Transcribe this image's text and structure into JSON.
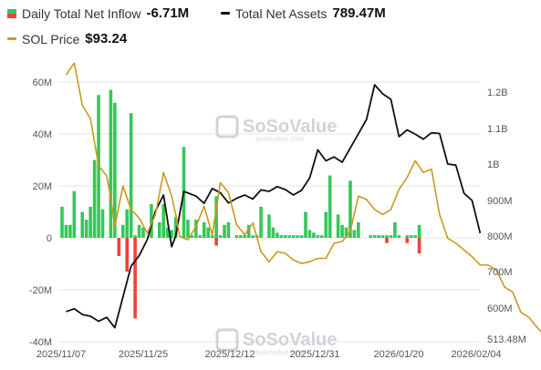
{
  "legend": {
    "inflow": {
      "label": "Daily Total Net Inflow",
      "value": "-6.71M",
      "icon": "green-red-square-icon"
    },
    "assets": {
      "label": "Total Net Assets",
      "value": "789.47M",
      "icon": "black-line-icon"
    },
    "price": {
      "label": "SOL Price",
      "value": "$93.24",
      "icon": "gold-line-icon"
    }
  },
  "watermark": {
    "text": "SoSoValue",
    "subtext": "sosovalue.com"
  },
  "colors": {
    "inflow_positive": "#35c759",
    "inflow_negative": "#f0413a",
    "net_assets": "#111111",
    "sol_price": "#c99a1e",
    "grid": "#e6e6e6"
  },
  "chart_data": {
    "type": "bar+line",
    "x_tick_labels": [
      "2025/11/07",
      "2025/11/25",
      "2025/12/12",
      "2025/12/31",
      "2026/01/20",
      "2026/02/04"
    ],
    "left_axis": {
      "name": "Daily Total Net Inflow",
      "unit": "USD",
      "ticks": [
        "60M",
        "40M",
        "20M",
        "0",
        "-20M",
        "-40M"
      ],
      "range": [
        -40,
        60
      ]
    },
    "right_axis": {
      "name": "Total Net Assets",
      "unit": "USD",
      "ticks": [
        "1.2B",
        "1.1B",
        "1B",
        "900M",
        "800M",
        "700M",
        "600M",
        "513.48M"
      ],
      "range": [
        513.48,
        1250
      ]
    },
    "price_axis_hidden_range": [
      80,
      250
    ],
    "series": [
      {
        "name": "Daily Total Net Inflow",
        "type": "bar",
        "values": [
          12,
          5,
          5,
          18,
          0,
          10,
          7,
          12,
          30,
          55,
          11,
          0,
          57,
          52,
          0,
          5,
          11,
          48,
          1,
          5,
          4,
          0,
          13,
          0,
          6,
          13,
          4,
          3,
          8,
          0,
          35,
          7,
          1,
          7,
          1,
          6,
          4,
          1,
          16,
          1,
          5,
          6,
          0,
          1,
          1,
          1,
          5,
          1,
          1,
          12,
          0,
          9,
          4,
          2,
          1,
          1,
          1,
          1,
          1,
          1,
          10,
          3,
          2,
          1,
          1,
          10,
          24,
          0,
          9,
          5,
          4,
          22,
          3,
          6,
          0,
          0,
          1,
          1,
          1,
          1,
          1,
          1,
          6,
          1,
          0,
          1,
          1,
          1,
          5
        ],
        "negative_bars": {
          "index": [
            14,
            16,
            18,
            38,
            80,
            85,
            88
          ],
          "values": [
            -7,
            -13,
            -31,
            -3,
            -2,
            -2,
            -6
          ]
        }
      },
      {
        "name": "Total Net Assets",
        "type": "line",
        "points": [
          [
            1,
            590
          ],
          [
            3,
            598
          ],
          [
            5,
            582
          ],
          [
            7,
            577
          ],
          [
            9,
            563
          ],
          [
            11,
            574
          ],
          [
            13,
            545
          ],
          [
            15,
            630
          ],
          [
            17,
            715
          ],
          [
            19,
            745
          ],
          [
            21,
            790
          ],
          [
            23,
            870
          ],
          [
            25,
            915
          ],
          [
            27,
            770
          ],
          [
            28,
            800
          ],
          [
            30,
            925
          ],
          [
            33,
            912
          ],
          [
            35,
            892
          ],
          [
            37,
            933
          ],
          [
            39,
            921
          ],
          [
            41,
            893
          ],
          [
            43,
            906
          ],
          [
            45,
            915
          ],
          [
            47,
            904
          ],
          [
            49,
            929
          ],
          [
            51,
            925
          ],
          [
            53,
            938
          ],
          [
            55,
            930
          ],
          [
            57,
            915
          ],
          [
            59,
            928
          ],
          [
            61,
            962
          ],
          [
            63,
            1040
          ],
          [
            65,
            1009
          ],
          [
            67,
            1020
          ],
          [
            69,
            1005
          ],
          [
            71,
            1045
          ],
          [
            73,
            1085
          ],
          [
            75,
            1125
          ],
          [
            77,
            1220
          ],
          [
            79,
            1195
          ],
          [
            81,
            1180
          ],
          [
            83,
            1077
          ],
          [
            85,
            1096
          ],
          [
            87,
            1084
          ],
          [
            89,
            1070
          ],
          [
            91,
            1088
          ],
          [
            93,
            1086
          ],
          [
            95,
            1000
          ],
          [
            97,
            997
          ],
          [
            99,
            920
          ],
          [
            101,
            900
          ],
          [
            103,
            808
          ]
        ]
      },
      {
        "name": "SOL Price",
        "type": "line",
        "points": [
          [
            1,
            238
          ],
          [
            3,
            245
          ],
          [
            5,
            220
          ],
          [
            7,
            212
          ],
          [
            9,
            184
          ],
          [
            11,
            178
          ],
          [
            12,
            165
          ],
          [
            13,
            148
          ],
          [
            15,
            172
          ],
          [
            17,
            158
          ],
          [
            19,
            153
          ],
          [
            21,
            144
          ],
          [
            23,
            155
          ],
          [
            25,
            180
          ],
          [
            27,
            166
          ],
          [
            28,
            155
          ],
          [
            29,
            142
          ],
          [
            31,
            140
          ],
          [
            33,
            148
          ],
          [
            35,
            160
          ],
          [
            37,
            143
          ],
          [
            39,
            174
          ],
          [
            41,
            168
          ],
          [
            43,
            149
          ],
          [
            45,
            143
          ],
          [
            47,
            150
          ],
          [
            49,
            133
          ],
          [
            51,
            127
          ],
          [
            53,
            133
          ],
          [
            55,
            132
          ],
          [
            57,
            128
          ],
          [
            59,
            126
          ],
          [
            61,
            127
          ],
          [
            63,
            129
          ],
          [
            65,
            129
          ],
          [
            67,
            138
          ],
          [
            69,
            139
          ],
          [
            71,
            145
          ],
          [
            73,
            166
          ],
          [
            75,
            164
          ],
          [
            77,
            158
          ],
          [
            79,
            155
          ],
          [
            81,
            158
          ],
          [
            83,
            170
          ],
          [
            85,
            177
          ],
          [
            87,
            187
          ],
          [
            89,
            180
          ],
          [
            91,
            182
          ],
          [
            93,
            155
          ],
          [
            95,
            141
          ],
          [
            97,
            138
          ],
          [
            99,
            134
          ],
          [
            101,
            130
          ],
          [
            103,
            125
          ],
          [
            105,
            125
          ],
          [
            107,
            122
          ],
          [
            109,
            112
          ],
          [
            111,
            109
          ],
          [
            113,
            97
          ],
          [
            115,
            94
          ],
          [
            117,
            88
          ],
          [
            119,
            83
          ],
          [
            121,
            80
          ]
        ]
      }
    ]
  }
}
